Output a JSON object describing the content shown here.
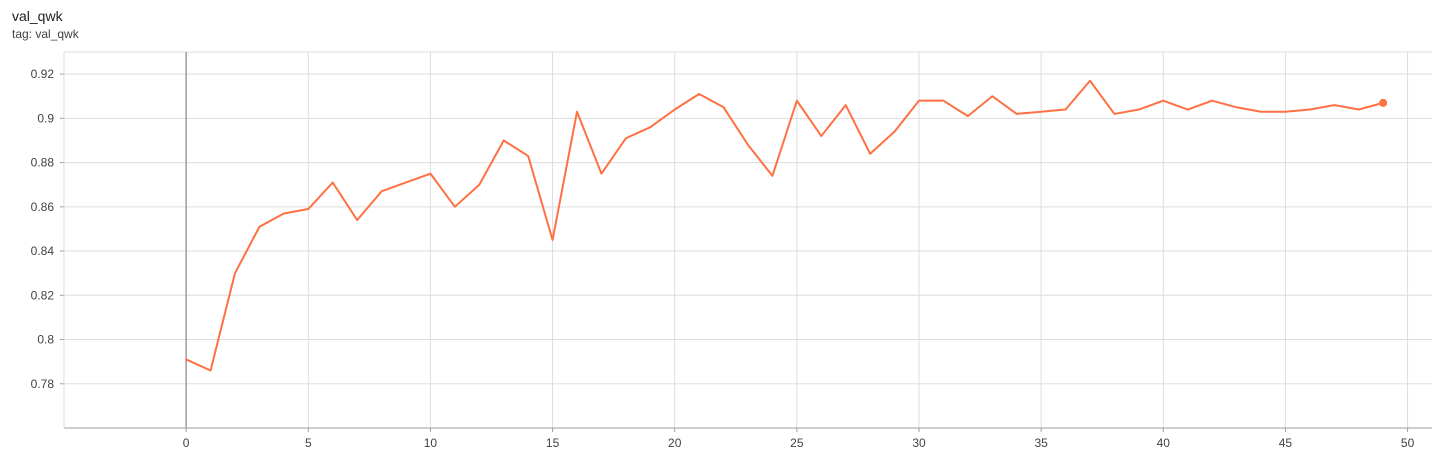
{
  "card": {
    "title": "val_qwk",
    "tag_line": "tag: val_qwk"
  },
  "chart_data": {
    "type": "line",
    "title": "val_qwk",
    "xlabel": "",
    "ylabel": "",
    "xlim": [
      -5,
      51
    ],
    "ylim": [
      0.76,
      0.93
    ],
    "x_ticks": [
      0,
      5,
      10,
      15,
      20,
      25,
      30,
      35,
      40,
      45,
      50
    ],
    "y_ticks": [
      0.78,
      0.8,
      0.82,
      0.84,
      0.86,
      0.88,
      0.9,
      0.92
    ],
    "y_tick_labels": [
      "0.78",
      "0.8",
      "0.82",
      "0.84",
      "0.86",
      "0.88",
      "0.9",
      "0.92"
    ],
    "grid": true,
    "last_point_marker": true,
    "color": "#ff7043",
    "series": [
      {
        "x": [
          0,
          1,
          2,
          3,
          4,
          5,
          6,
          7,
          8,
          9,
          10,
          11,
          12,
          13,
          14,
          15,
          16,
          17,
          18,
          19,
          20,
          21,
          22,
          23,
          24,
          25,
          26,
          27,
          28,
          29,
          30,
          31,
          32,
          33,
          34,
          35,
          36,
          37,
          38,
          39,
          40,
          41,
          42,
          43,
          44,
          45,
          46,
          47,
          48,
          49
        ],
        "y": [
          0.791,
          0.786,
          0.83,
          0.851,
          0.857,
          0.859,
          0.871,
          0.854,
          0.867,
          0.871,
          0.875,
          0.86,
          0.87,
          0.89,
          0.883,
          0.845,
          0.903,
          0.875,
          0.891,
          0.896,
          0.904,
          0.911,
          0.905,
          0.888,
          0.874,
          0.908,
          0.892,
          0.906,
          0.884,
          0.894,
          0.908,
          0.908,
          0.901,
          0.91,
          0.902,
          0.903,
          0.904,
          0.917,
          0.902,
          0.904,
          0.908,
          0.904,
          0.908,
          0.905,
          0.903,
          0.903,
          0.904,
          0.906,
          0.904,
          0.907
        ]
      }
    ]
  }
}
